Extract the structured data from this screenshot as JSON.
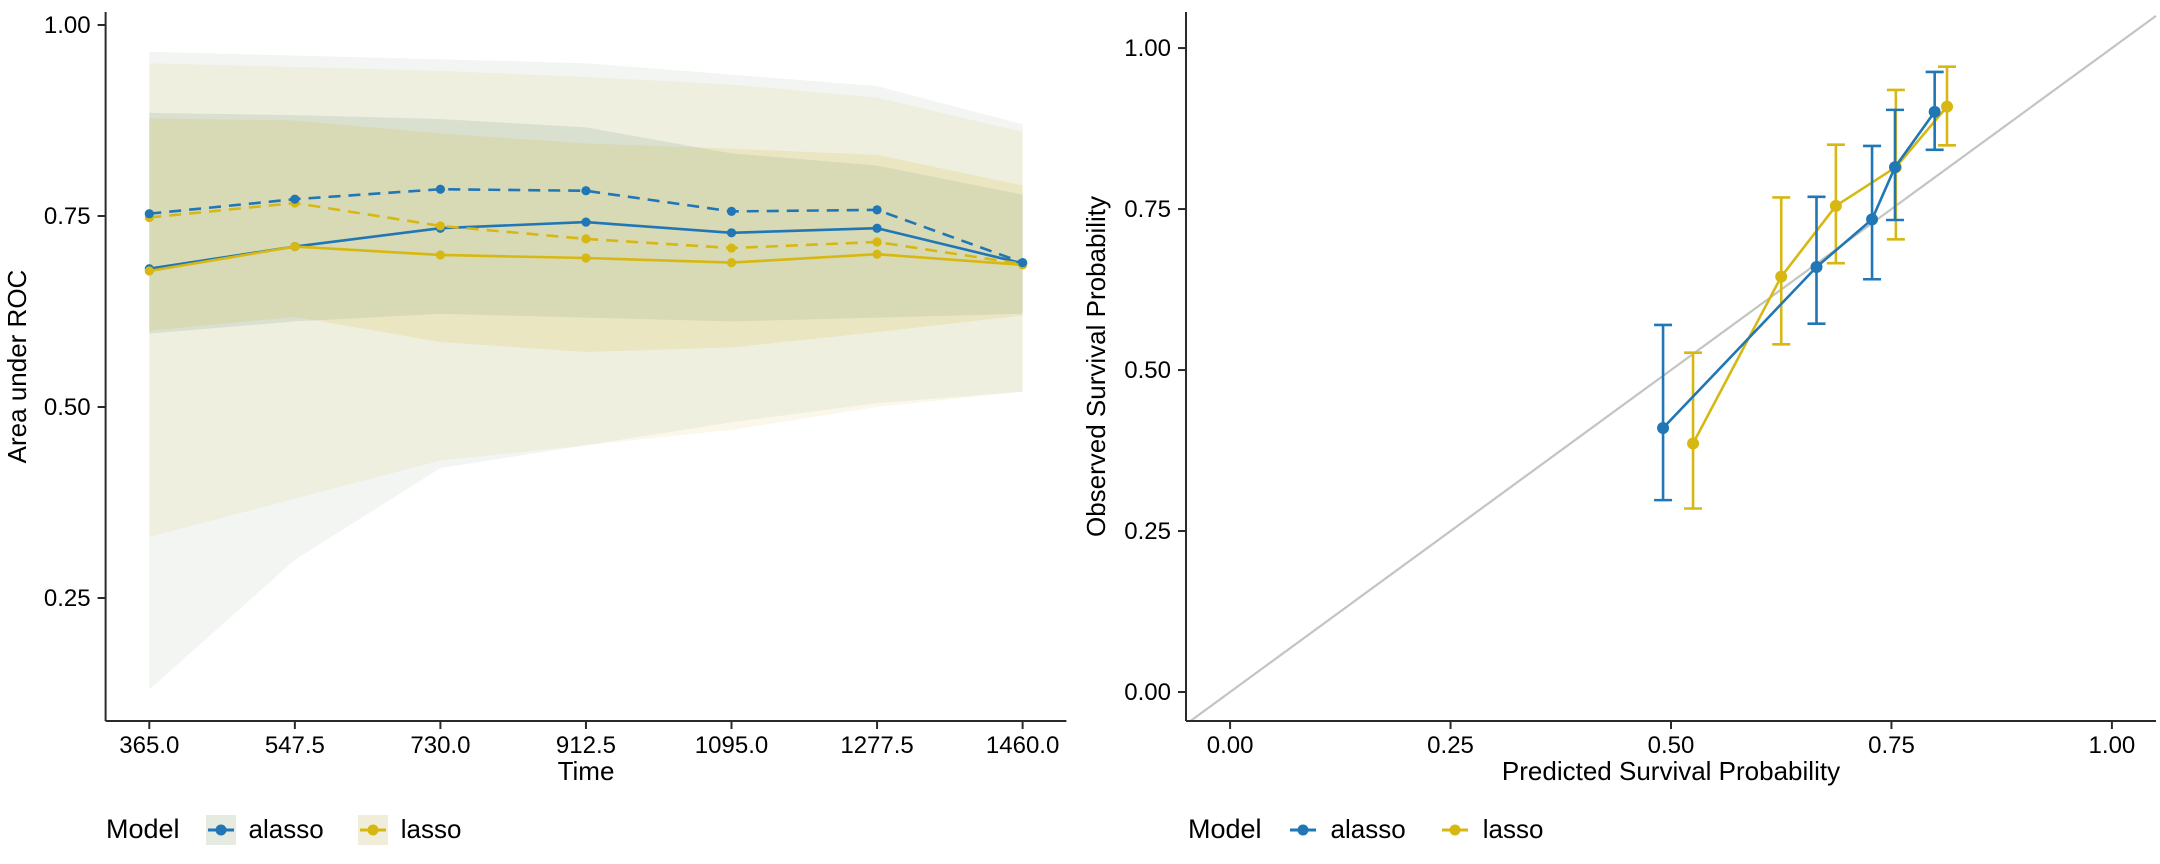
{
  "figure": {
    "background": "#ffffff",
    "description_left": "Time-dependent area under ROC with confidence ribbons",
    "description_right": "Calibration of predicted vs observed survival probability"
  },
  "colors": {
    "alasso": "#2176b5",
    "lasso": "#d7b812",
    "diagonal": "#c2c5c0",
    "axis": "#2a2a2a",
    "alasso_key_bg": "#e5ebe1",
    "lasso_key_bg": "#f1eddb"
  },
  "legends": {
    "left": {
      "title": "Model",
      "items": [
        {
          "label": "alasso",
          "color": "#2176b5",
          "key_bg": "#e5ebe1"
        },
        {
          "label": "lasso",
          "color": "#d7b812",
          "key_bg": "#f1eddb"
        }
      ]
    },
    "right": {
      "title": "Model",
      "items": [
        {
          "label": "alasso",
          "color": "#2176b5",
          "key_bg": "#ffffff"
        },
        {
          "label": "lasso",
          "color": "#d7b812",
          "key_bg": "#ffffff"
        }
      ]
    }
  },
  "chart_data": [
    {
      "type": "line",
      "xlabel": "Time",
      "ylabel": "Area under ROC",
      "x_ticks": [
        365.0,
        547.5,
        730.0,
        912.5,
        1095.0,
        1277.5,
        1460.0
      ],
      "x_tick_labels": [
        "365.0",
        "547.5",
        "730.0",
        "912.5",
        "1095.0",
        "1277.5",
        "1460.0"
      ],
      "y_ticks": [
        0.25,
        0.5,
        0.75,
        1.0
      ],
      "y_tick_labels": [
        "0.25",
        "0.50",
        "0.75",
        "1.00"
      ],
      "x_range": [
        310.2,
        1514.9
      ],
      "y_range": [
        0.089,
        1.017
      ],
      "grid": false,
      "legend_position": "bottom",
      "x": [
        365,
        547.5,
        730,
        912.5,
        1095,
        1277.5,
        1460
      ],
      "series": [
        {
          "name": "alasso (solid)",
          "model": "alasso",
          "linetype": "solid",
          "color": "#2176b5",
          "values": [
            0.681,
            0.71,
            0.734,
            0.742,
            0.728,
            0.734,
            0.688
          ]
        },
        {
          "name": "lasso (solid)",
          "model": "lasso",
          "linetype": "solid",
          "color": "#d7b812",
          "values": [
            0.678,
            0.71,
            0.699,
            0.695,
            0.689,
            0.7,
            0.686
          ]
        },
        {
          "name": "lasso (dashed)",
          "model": "lasso",
          "linetype": "dashed",
          "color": "#d7b812",
          "values": [
            0.748,
            0.767,
            0.737,
            0.72,
            0.708,
            0.716,
            0.687
          ]
        },
        {
          "name": "alasso (dashed)",
          "model": "alasso",
          "linetype": "dashed",
          "color": "#2176b5",
          "values": [
            0.753,
            0.772,
            0.785,
            0.783,
            0.756,
            0.758,
            0.689
          ]
        }
      ],
      "ribbons": [
        {
          "name": "alasso outer CI",
          "fill": "rgba(132,158,126,0.10)",
          "top": [
            0.965,
            0.96,
            0.955,
            0.95,
            0.935,
            0.92,
            0.87
          ],
          "bottom": [
            0.13,
            0.3,
            0.42,
            0.45,
            0.48,
            0.505,
            0.52
          ]
        },
        {
          "name": "lasso outer CI",
          "fill": "rgba(213,190,60,0.10)",
          "top": [
            0.95,
            0.945,
            0.94,
            0.932,
            0.922,
            0.905,
            0.86
          ],
          "bottom": [
            0.33,
            0.38,
            0.43,
            0.45,
            0.47,
            0.5,
            0.52
          ]
        },
        {
          "name": "alasso inner CI",
          "fill": "rgba(110,150,130,0.16)",
          "top": [
            0.885,
            0.882,
            0.877,
            0.866,
            0.832,
            0.816,
            0.778
          ],
          "bottom": [
            0.596,
            0.612,
            0.622,
            0.617,
            0.612,
            0.617,
            0.622
          ]
        },
        {
          "name": "lasso inner CI",
          "fill": "rgba(213,190,60,0.18)",
          "top": [
            0.878,
            0.875,
            0.858,
            0.845,
            0.838,
            0.83,
            0.79
          ],
          "bottom": [
            0.6,
            0.618,
            0.585,
            0.572,
            0.578,
            0.598,
            0.62
          ]
        }
      ]
    },
    {
      "type": "scatter",
      "xlabel": "Predicted Survival Probability",
      "ylabel": "Observed Survival Probability",
      "x_ticks": [
        0.0,
        0.25,
        0.5,
        0.75,
        1.0
      ],
      "x_tick_labels": [
        "0.00",
        "0.25",
        "0.50",
        "0.75",
        "1.00"
      ],
      "y_ticks": [
        0.0,
        0.25,
        0.5,
        0.75,
        1.0
      ],
      "y_tick_labels": [
        "0.00",
        "0.25",
        "0.50",
        "0.75",
        "1.00"
      ],
      "x_range": [
        -0.05,
        1.05
      ],
      "y_range": [
        -0.045,
        1.056
      ],
      "grid": false,
      "legend_position": "bottom",
      "diagonal_line": {
        "from": 0,
        "to": 1,
        "color": "#c2c5c0"
      },
      "series": [
        {
          "name": "lasso",
          "color": "#d7b812",
          "points": [
            {
              "x": 0.525,
              "y": 0.386,
              "lo": 0.285,
              "hi": 0.527
            },
            {
              "x": 0.625,
              "y": 0.645,
              "lo": 0.54,
              "hi": 0.768
            },
            {
              "x": 0.687,
              "y": 0.755,
              "lo": 0.666,
              "hi": 0.85
            },
            {
              "x": 0.755,
              "y": 0.815,
              "lo": 0.703,
              "hi": 0.935
            },
            {
              "x": 0.813,
              "y": 0.909,
              "lo": 0.849,
              "hi": 0.971
            }
          ]
        },
        {
          "name": "alasso",
          "color": "#2176b5",
          "points": [
            {
              "x": 0.491,
              "y": 0.41,
              "lo": 0.298,
              "hi": 0.57
            },
            {
              "x": 0.665,
              "y": 0.66,
              "lo": 0.572,
              "hi": 0.769
            },
            {
              "x": 0.728,
              "y": 0.734,
              "lo": 0.641,
              "hi": 0.848
            },
            {
              "x": 0.754,
              "y": 0.815,
              "lo": 0.733,
              "hi": 0.904
            },
            {
              "x": 0.799,
              "y": 0.901,
              "lo": 0.842,
              "hi": 0.963
            }
          ]
        }
      ]
    }
  ]
}
